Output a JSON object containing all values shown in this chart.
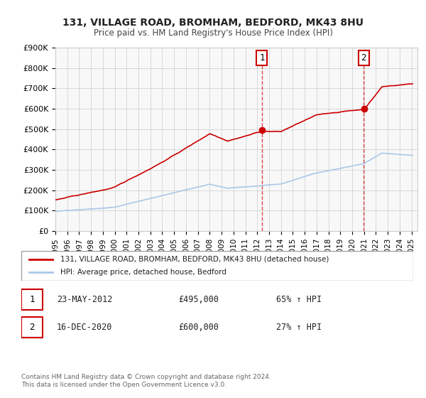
{
  "title1": "131, VILLAGE ROAD, BROMHAM, BEDFORD, MK43 8HU",
  "title2": "Price paid vs. HM Land Registry's House Price Index (HPI)",
  "legend_label1": "131, VILLAGE ROAD, BROMHAM, BEDFORD, MK43 8HU (detached house)",
  "legend_label2": "HPI: Average price, detached house, Bedford",
  "sale1_label": "1",
  "sale1_date": "23-MAY-2012",
  "sale1_price": "£495,000",
  "sale1_hpi": "65% ↑ HPI",
  "sale1_year": 2012.39,
  "sale1_value": 495000,
  "sale2_label": "2",
  "sale2_date": "16-DEC-2020",
  "sale2_price": "£600,000",
  "sale2_hpi": "27% ↑ HPI",
  "sale2_year": 2020.96,
  "sale2_value": 600000,
  "vline1_year": 2012.39,
  "vline2_year": 2020.96,
  "line1_color": "#cc0000",
  "line2_color": "#aac8e8",
  "dot_color": "#cc0000",
  "background_color": "#f8f8f8",
  "grid_color": "#cccccc",
  "ylim": [
    0,
    900000
  ],
  "xlim_start": 1995.0,
  "xlim_end": 2025.5,
  "footnote": "Contains HM Land Registry data © Crown copyright and database right 2024.\nThis data is licensed under the Open Government Licence v3.0."
}
